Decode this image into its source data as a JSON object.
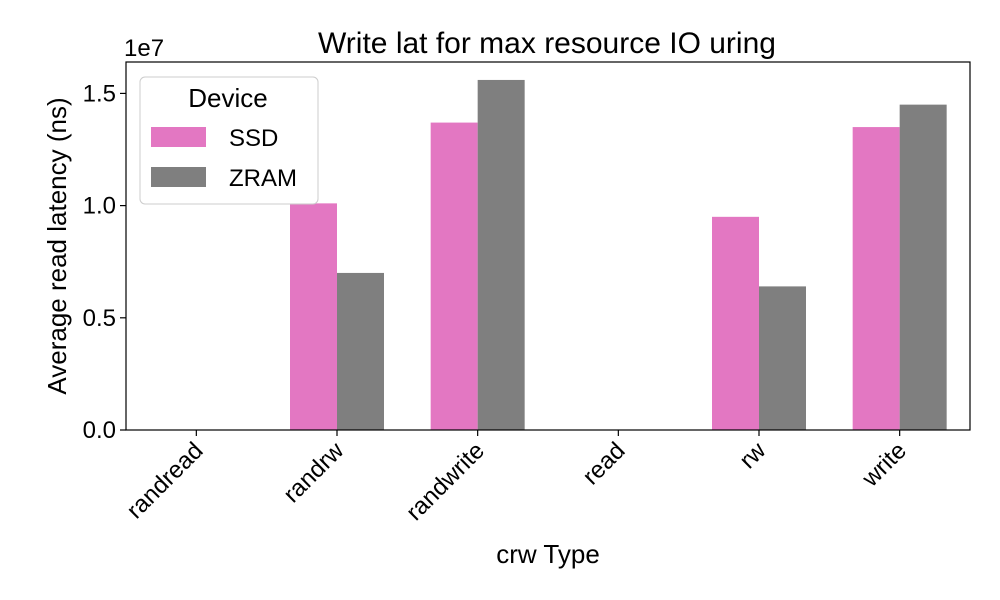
{
  "chart_data": {
    "type": "bar",
    "title": "Write lat for max resource IO uring",
    "xlabel": "crw Type",
    "ylabel": "Average read latency (ns)",
    "y_offset_label": "1e7",
    "categories": [
      "randread",
      "randrw",
      "randwrite",
      "read",
      "rw",
      "write"
    ],
    "series": [
      {
        "name": "SSD",
        "color": "#e377c2",
        "values": [
          0,
          10100000,
          13700000,
          0,
          9500000,
          13500000
        ]
      },
      {
        "name": "ZRAM",
        "color": "#7f7f7f",
        "values": [
          0,
          7000000,
          15600000,
          0,
          6400000,
          14500000
        ]
      }
    ],
    "ylim": [
      0,
      16400000
    ],
    "yticks": [
      0,
      5000000,
      10000000,
      15000000
    ],
    "ytick_labels": [
      "0.0",
      "0.5",
      "1.0",
      "1.5"
    ],
    "grid": false,
    "legend": {
      "title": "Device",
      "placement": "top-left"
    }
  }
}
